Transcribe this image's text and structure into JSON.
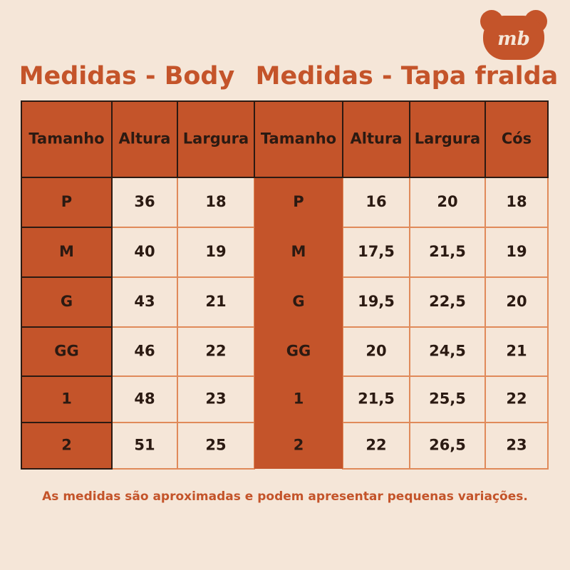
{
  "logo": "mb",
  "body": {
    "title": "Medidas - Body",
    "headers": [
      "Tamanho",
      "Altura",
      "Largura"
    ],
    "rows": [
      [
        "P",
        "36",
        "18"
      ],
      [
        "M",
        "40",
        "19"
      ],
      [
        "G",
        "43",
        "21"
      ],
      [
        "GG",
        "46",
        "22"
      ],
      [
        "1",
        "48",
        "23"
      ],
      [
        "2",
        "51",
        "25"
      ]
    ]
  },
  "tapa_fralda": {
    "title": "Medidas - Tapa fralda",
    "headers": [
      "Tamanho",
      "Altura",
      "Largura",
      "Cós"
    ],
    "rows": [
      [
        "P",
        "16",
        "20",
        "18"
      ],
      [
        "M",
        "17,5",
        "21,5",
        "19"
      ],
      [
        "G",
        "19,5",
        "22,5",
        "20"
      ],
      [
        "GG",
        "20",
        "24,5",
        "21"
      ],
      [
        "1",
        "21,5",
        "25,5",
        "22"
      ],
      [
        "2",
        "22",
        "26,5",
        "23"
      ]
    ]
  },
  "footer": "As medidas são aproximadas e podem apresentar pequenas variações."
}
